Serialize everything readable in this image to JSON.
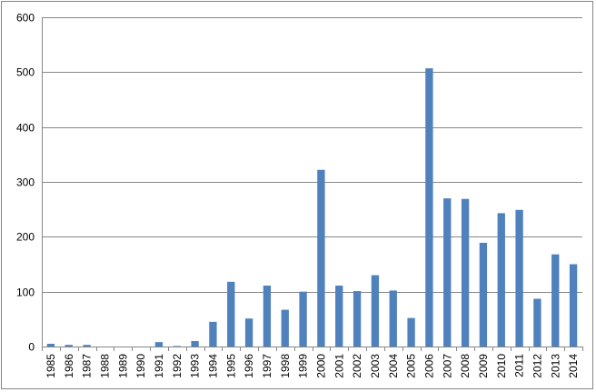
{
  "chart_data": {
    "type": "bar",
    "categories": [
      "1985",
      "1986",
      "1987",
      "1988",
      "1989",
      "1990",
      "1991",
      "1992",
      "1993",
      "1994",
      "1995",
      "1996",
      "1997",
      "1998",
      "1999",
      "2000",
      "2001",
      "2002",
      "2003",
      "2004",
      "2005",
      "2006",
      "2007",
      "2008",
      "2009",
      "2010",
      "2011",
      "2012",
      "2013",
      "2014"
    ],
    "values": [
      5,
      3,
      3,
      0,
      0,
      0,
      8,
      1,
      10,
      45,
      118,
      51,
      111,
      67,
      100,
      322,
      111,
      101,
      130,
      102,
      52,
      507,
      270,
      269,
      189,
      243,
      249,
      87,
      168,
      150
    ],
    "title": "",
    "xlabel": "",
    "ylabel": "",
    "ylim": [
      0,
      600
    ],
    "yticks": [
      0,
      100,
      200,
      300,
      400,
      500,
      600
    ],
    "grid": true,
    "legend": "none",
    "bar_color": "#4F81BD"
  }
}
